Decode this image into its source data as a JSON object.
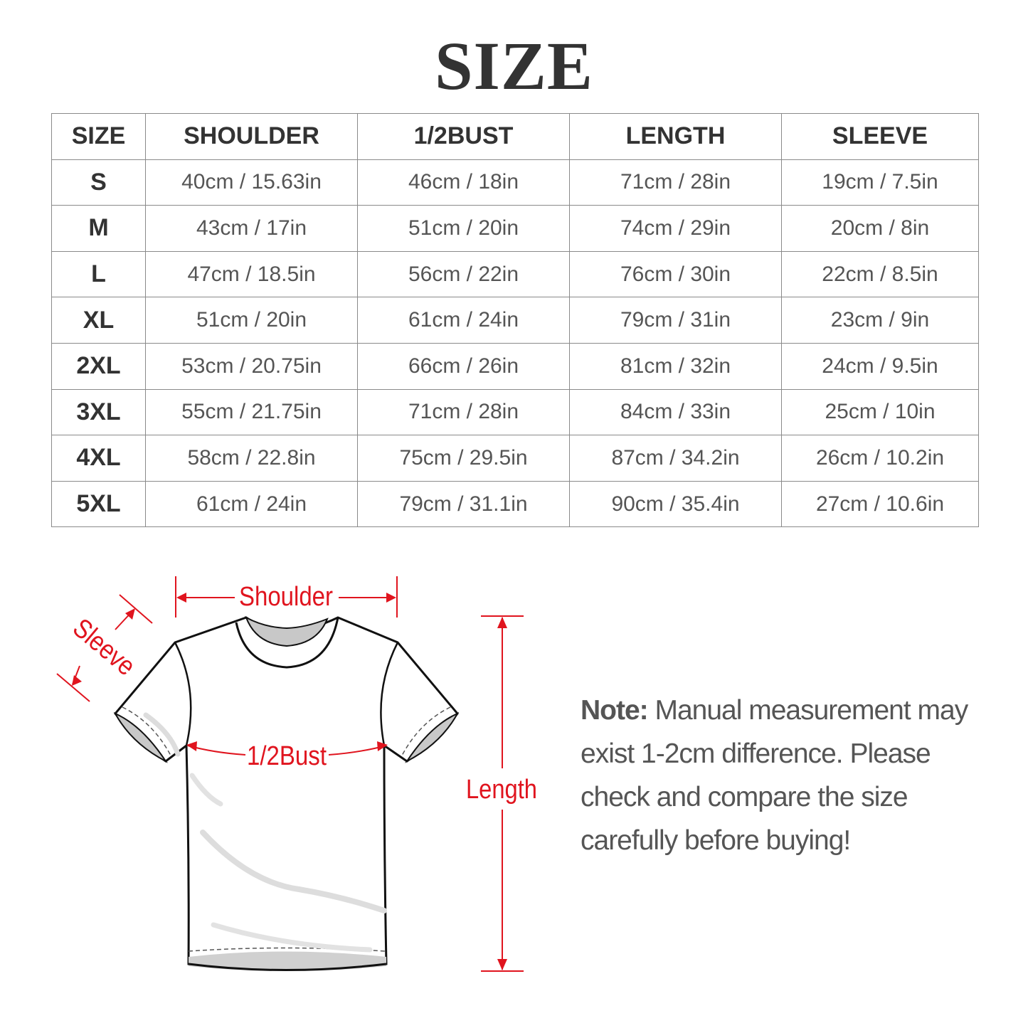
{
  "title": "SIZE",
  "table": {
    "headers": [
      "SIZE",
      "SHOULDER",
      "1/2BUST",
      "LENGTH",
      "SLEEVE"
    ],
    "rows": [
      [
        "S",
        "40cm / 15.63in",
        "46cm / 18in",
        "71cm / 28in",
        "19cm / 7.5in"
      ],
      [
        "M",
        "43cm / 17in",
        "51cm / 20in",
        "74cm / 29in",
        "20cm / 8in"
      ],
      [
        "L",
        "47cm / 18.5in",
        "56cm / 22in",
        "76cm / 30in",
        "22cm / 8.5in"
      ],
      [
        "XL",
        "51cm / 20in",
        "61cm / 24in",
        "79cm / 31in",
        "23cm / 9in"
      ],
      [
        "2XL",
        "53cm / 20.75in",
        "66cm / 26in",
        "81cm / 32in",
        "24cm / 9.5in"
      ],
      [
        "3XL",
        "55cm / 21.75in",
        "71cm / 28in",
        "84cm / 33in",
        "25cm / 10in"
      ],
      [
        "4XL",
        "58cm / 22.8in",
        "75cm / 29.5in",
        "87cm / 34.2in",
        "26cm / 10.2in"
      ],
      [
        "5XL",
        "61cm / 24in",
        "79cm / 31.1in",
        "90cm / 35.4in",
        "27cm / 10.6in"
      ]
    ]
  },
  "diagram": {
    "shoulder_label": "Shoulder",
    "sleeve_label": "Sleeve",
    "bust_label": "1/2Bust",
    "length_label": "Length",
    "accent_color": "#e0141e"
  },
  "note": {
    "label": "Note:",
    "text": "Manual measurement may exist 1-2cm difference. Please check and compare the size carefully before buying!"
  }
}
